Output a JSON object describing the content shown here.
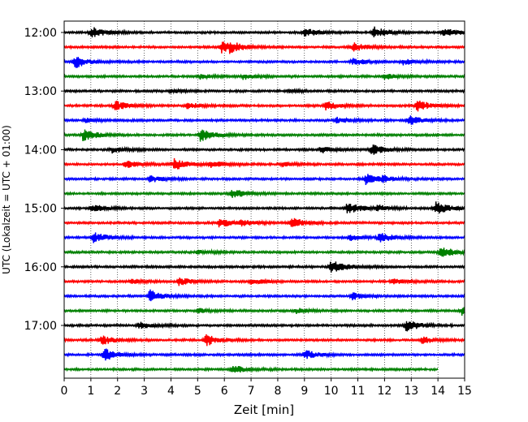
{
  "chart_data": {
    "type": "line",
    "chart_kind": "helicorder",
    "xlabel": "Zeit  [min]",
    "ylabel": "UTC (Lokalzeit = UTC + 01:00)",
    "xlim": [
      0,
      15
    ],
    "x_ticks": [
      "0",
      "1",
      "2",
      "3",
      "4",
      "5",
      "6",
      "7",
      "8",
      "9",
      "10",
      "11",
      "12",
      "13",
      "14",
      "15"
    ],
    "hour_labels": [
      "12:00",
      "13:00",
      "14:00",
      "15:00",
      "16:00",
      "17:00"
    ],
    "traces_per_hour": 4,
    "trace_count": 24,
    "last_trace_end_min": 14.0,
    "grid": "vertical dotted at each minute",
    "colors": [
      "#000000",
      "#ff0000",
      "#0000ff",
      "#008000"
    ],
    "events": [
      [
        [
          1.0,
          1.1
        ],
        [
          9.0,
          0.8
        ],
        [
          11.6,
          1.0
        ],
        [
          14.2,
          0.8
        ]
      ],
      [
        [
          5.9,
          1.0
        ],
        [
          6.2,
          0.7
        ],
        [
          10.8,
          0.8
        ]
      ],
      [
        [
          0.4,
          1.2
        ],
        [
          10.8,
          0.7
        ],
        [
          12.7,
          0.5
        ]
      ],
      [
        [
          5.1,
          0.4
        ],
        [
          6.7,
          0.5
        ],
        [
          12.0,
          0.5
        ]
      ],
      [
        [
          4.0,
          0.3
        ],
        [
          8.4,
          0.3
        ]
      ],
      [
        [
          1.9,
          0.9
        ],
        [
          4.6,
          0.6
        ],
        [
          9.8,
          0.9
        ],
        [
          13.2,
          1.1
        ]
      ],
      [
        [
          0.8,
          0.4
        ],
        [
          10.2,
          0.5
        ],
        [
          12.9,
          1.0
        ]
      ],
      [
        [
          0.7,
          1.1
        ],
        [
          5.1,
          1.2
        ]
      ],
      [
        [
          1.8,
          0.6
        ],
        [
          9.6,
          0.6
        ],
        [
          11.5,
          1.0
        ]
      ],
      [
        [
          2.3,
          0.7
        ],
        [
          4.1,
          1.2
        ],
        [
          5.5,
          0.6
        ],
        [
          8.2,
          0.4
        ]
      ],
      [
        [
          3.2,
          0.6
        ],
        [
          11.3,
          1.1
        ],
        [
          11.9,
          0.4
        ]
      ],
      [
        [
          6.3,
          0.8
        ]
      ],
      [
        [
          1.0,
          0.8
        ],
        [
          10.6,
          1.2
        ],
        [
          11.7,
          0.5
        ],
        [
          13.9,
          1.2
        ]
      ],
      [
        [
          5.8,
          0.9
        ],
        [
          6.6,
          0.6
        ],
        [
          8.5,
          1.0
        ]
      ],
      [
        [
          1.1,
          1.0
        ],
        [
          10.7,
          0.5
        ],
        [
          11.8,
          1.0
        ]
      ],
      [
        [
          5.0,
          0.4
        ],
        [
          14.1,
          1.1
        ]
      ],
      [
        [
          10.0,
          1.2
        ]
      ],
      [
        [
          2.5,
          0.4
        ],
        [
          4.3,
          0.7
        ],
        [
          7.0,
          0.6
        ],
        [
          12.3,
          0.5
        ]
      ],
      [
        [
          3.2,
          1.2
        ],
        [
          10.8,
          0.6
        ]
      ],
      [
        [
          5.0,
          0.4
        ],
        [
          8.7,
          0.5
        ],
        [
          14.9,
          0.8
        ]
      ],
      [
        [
          2.8,
          0.6
        ],
        [
          12.8,
          1.1
        ]
      ],
      [
        [
          1.4,
          0.9
        ],
        [
          5.3,
          1.1
        ],
        [
          13.4,
          0.6
        ]
      ],
      [
        [
          1.5,
          1.2
        ],
        [
          9.0,
          0.9
        ]
      ],
      [
        [
          6.3,
          0.8
        ]
      ]
    ]
  }
}
